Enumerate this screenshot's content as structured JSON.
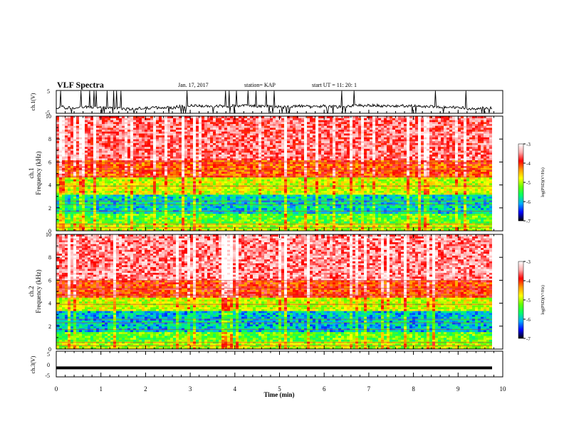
{
  "header": {
    "title": "VLF Spectra",
    "date": "Jan. 17, 2017",
    "station": "station= KAP",
    "start": "start  UT =   11: 20: 1"
  },
  "colors": {
    "scale_stops": [
      "#000000",
      "#0000ff",
      "#00aaff",
      "#00ff66",
      "#66ff00",
      "#ffff00",
      "#ff9900",
      "#ff0000",
      "#ffaaaa",
      "#ffffff"
    ],
    "trace": "#000000"
  },
  "chart_data": [
    {
      "type": "line",
      "ylabel": "ch.1(V)",
      "ylim": [
        -5,
        5
      ],
      "yticks": [
        "5",
        "-5"
      ],
      "xlim": [
        0,
        10
      ],
      "note": "noisy voltage trace around -2.5 V"
    },
    {
      "type": "heatmap",
      "ylabel": "ch.1\nFrequency (kHz)",
      "ylim": [
        0,
        10
      ],
      "yticks": [
        "0",
        "2",
        "4",
        "6",
        "8",
        "10"
      ],
      "xlim": [
        0,
        10
      ],
      "colorbar": {
        "label": "log(PSD)(V²/Hz)",
        "ticks": [
          "-3",
          "-4",
          "-5",
          "-6",
          "-7"
        ],
        "range": [
          -7,
          -3
        ]
      },
      "bands": [
        {
          "from": 0,
          "to": 0.6,
          "level": -5.0
        },
        {
          "from": 0.6,
          "to": 1.5,
          "level": -5.3
        },
        {
          "from": 1.5,
          "to": 3.2,
          "level": -5.9
        },
        {
          "from": 3.2,
          "to": 4.6,
          "level": -4.9
        },
        {
          "from": 4.6,
          "to": 6.2,
          "level": -4.1
        },
        {
          "from": 6.2,
          "to": 10.0,
          "level": -3.6
        }
      ]
    },
    {
      "type": "heatmap",
      "ylabel": "ch.2\nFrequency (kHz)",
      "ylim": [
        0,
        10
      ],
      "yticks": [
        "0",
        "2",
        "4",
        "6",
        "8",
        "10"
      ],
      "xlim": [
        0,
        10
      ],
      "colorbar": {
        "label": "log(PSD)(V²/Hz)",
        "ticks": [
          "-3",
          "-4",
          "-5",
          "-6",
          "-7"
        ],
        "range": [
          -7,
          -3
        ]
      },
      "bands": [
        {
          "from": 0,
          "to": 0.6,
          "level": -5.0
        },
        {
          "from": 0.6,
          "to": 1.5,
          "level": -5.3
        },
        {
          "from": 1.5,
          "to": 3.3,
          "level": -6.0
        },
        {
          "from": 3.3,
          "to": 4.5,
          "level": -4.9
        },
        {
          "from": 4.5,
          "to": 6.0,
          "level": -4.0
        },
        {
          "from": 6.0,
          "to": 10.0,
          "level": -3.5
        }
      ]
    },
    {
      "type": "line",
      "ylabel": "ch.3(V)",
      "ylim": [
        -5,
        5
      ],
      "yticks": [
        "5",
        "0",
        "-5"
      ],
      "xlim": [
        0,
        10
      ],
      "constant_value": -1.5,
      "xlabel": "Time (min)",
      "xticks": [
        "0",
        "1",
        "2",
        "3",
        "4",
        "5",
        "6",
        "7",
        "8",
        "9",
        "10"
      ]
    }
  ]
}
